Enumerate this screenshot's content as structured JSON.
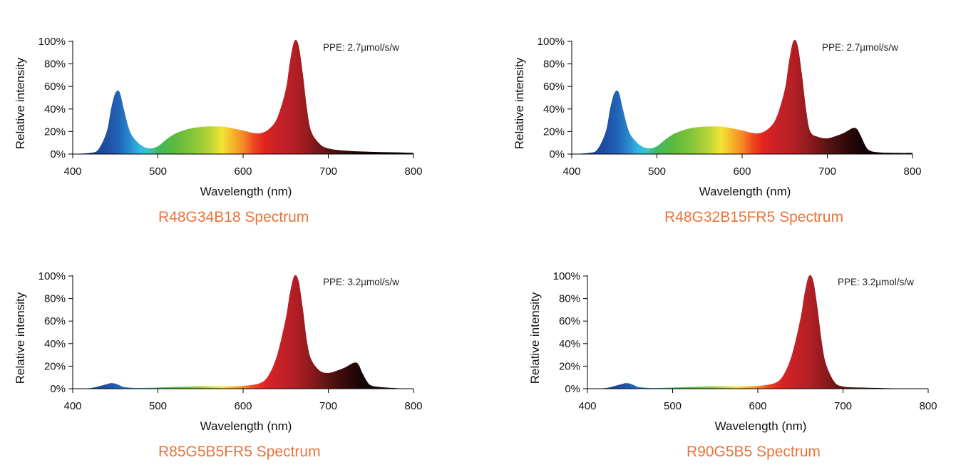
{
  "chart_data": [
    {
      "type": "area",
      "title": "R48G34B18 Spectrum",
      "annotation": "PPE:  2.7µmol/s/w",
      "xlabel": "Wavelength (nm)",
      "ylabel": "Relative intensity",
      "xlim": [
        400,
        800
      ],
      "ylim": [
        0,
        100
      ],
      "xticks": [
        "400",
        "500",
        "600",
        "700",
        "800"
      ],
      "yticks": [
        "0%",
        "20%",
        "40%",
        "60%",
        "80%",
        "100%"
      ],
      "grid": false,
      "x": [
        400,
        420,
        430,
        440,
        445,
        450,
        455,
        460,
        465,
        470,
        480,
        490,
        500,
        510,
        520,
        530,
        540,
        550,
        560,
        570,
        580,
        590,
        600,
        610,
        620,
        630,
        640,
        650,
        655,
        660,
        665,
        670,
        675,
        680,
        690,
        700,
        720,
        750,
        780,
        800
      ],
      "y": [
        0,
        1,
        4,
        20,
        40,
        54,
        55,
        40,
        25,
        16,
        8,
        5,
        7,
        13,
        18,
        21,
        23,
        24,
        24.5,
        24.5,
        24,
        22.5,
        21,
        19,
        18.5,
        22,
        32,
        57,
        82,
        100,
        97,
        72,
        40,
        20,
        9,
        5,
        3,
        2,
        1.5,
        1
      ]
    },
    {
      "type": "area",
      "title": "R48G32B15FR5 Spectrum",
      "annotation": "PPE:  2.7µmol/s/w",
      "xlabel": "Wavelength (nm)",
      "ylabel": "Relative intensity",
      "xlim": [
        400,
        800
      ],
      "ylim": [
        0,
        100
      ],
      "xticks": [
        "400",
        "500",
        "600",
        "700",
        "800"
      ],
      "yticks": [
        "0%",
        "20%",
        "40%",
        "60%",
        "80%",
        "100%"
      ],
      "grid": false,
      "x": [
        400,
        420,
        430,
        440,
        445,
        450,
        455,
        460,
        465,
        470,
        480,
        490,
        500,
        510,
        520,
        530,
        540,
        550,
        560,
        570,
        580,
        590,
        600,
        610,
        620,
        630,
        640,
        650,
        655,
        660,
        665,
        670,
        675,
        680,
        690,
        700,
        710,
        720,
        730,
        735,
        740,
        745,
        750,
        760,
        780,
        800
      ],
      "y": [
        0,
        1,
        4,
        20,
        40,
        54,
        55,
        40,
        25,
        16,
        8,
        5,
        7,
        13,
        18,
        21,
        23,
        24,
        24.5,
        24.5,
        24,
        22.5,
        21,
        19,
        18.5,
        22,
        32,
        57,
        82,
        100,
        97,
        72,
        40,
        20,
        15,
        14,
        16,
        19,
        23,
        22,
        15,
        7,
        3,
        1.5,
        1,
        1
      ]
    },
    {
      "type": "area",
      "title": "R85G5B5FR5 Spectrum",
      "annotation": "PPE:  3.2µmol/s/w",
      "xlabel": "Wavelength (nm)",
      "ylabel": "Relative intensity",
      "xlim": [
        400,
        800
      ],
      "ylim": [
        0,
        100
      ],
      "xticks": [
        "400",
        "500",
        "600",
        "700",
        "800"
      ],
      "yticks": [
        "0%",
        "20%",
        "40%",
        "60%",
        "80%",
        "100%"
      ],
      "grid": false,
      "x": [
        400,
        420,
        430,
        440,
        445,
        450,
        455,
        460,
        470,
        480,
        500,
        520,
        540,
        560,
        580,
        600,
        620,
        630,
        640,
        650,
        655,
        660,
        665,
        670,
        675,
        680,
        690,
        700,
        710,
        720,
        730,
        735,
        740,
        745,
        750,
        760,
        780,
        800
      ],
      "y": [
        0,
        0.5,
        2,
        4,
        5,
        4.5,
        3,
        1.5,
        0.8,
        0.6,
        1,
        1.5,
        2,
        2,
        2,
        2.5,
        5,
        12,
        30,
        62,
        85,
        100,
        96,
        72,
        42,
        26,
        16,
        14,
        16,
        19,
        23,
        22,
        14,
        7,
        3,
        1.5,
        0.5,
        0
      ]
    },
    {
      "type": "area",
      "title": "R90G5B5 Spectrum",
      "annotation": "PPE:  3.2µmol/s/w",
      "xlabel": "Wavelength (nm)",
      "ylabel": "Relative intensity",
      "xlim": [
        400,
        800
      ],
      "ylim": [
        0,
        100
      ],
      "xticks": [
        "400",
        "500",
        "600",
        "700",
        "800"
      ],
      "yticks": [
        "0%",
        "20%",
        "40%",
        "60%",
        "80%",
        "100%"
      ],
      "grid": false,
      "x": [
        400,
        420,
        430,
        440,
        445,
        450,
        455,
        460,
        470,
        480,
        500,
        520,
        540,
        560,
        580,
        600,
        620,
        630,
        640,
        650,
        655,
        660,
        665,
        670,
        675,
        680,
        690,
        700,
        720,
        750,
        780,
        800
      ],
      "y": [
        0,
        0.5,
        2,
        4,
        5,
        4.5,
        3,
        1.5,
        0.8,
        0.6,
        1,
        1.5,
        2,
        2,
        2,
        2.5,
        5,
        12,
        30,
        62,
        85,
        100,
        96,
        72,
        42,
        22,
        6,
        2,
        1,
        0.5,
        0,
        0
      ]
    }
  ]
}
